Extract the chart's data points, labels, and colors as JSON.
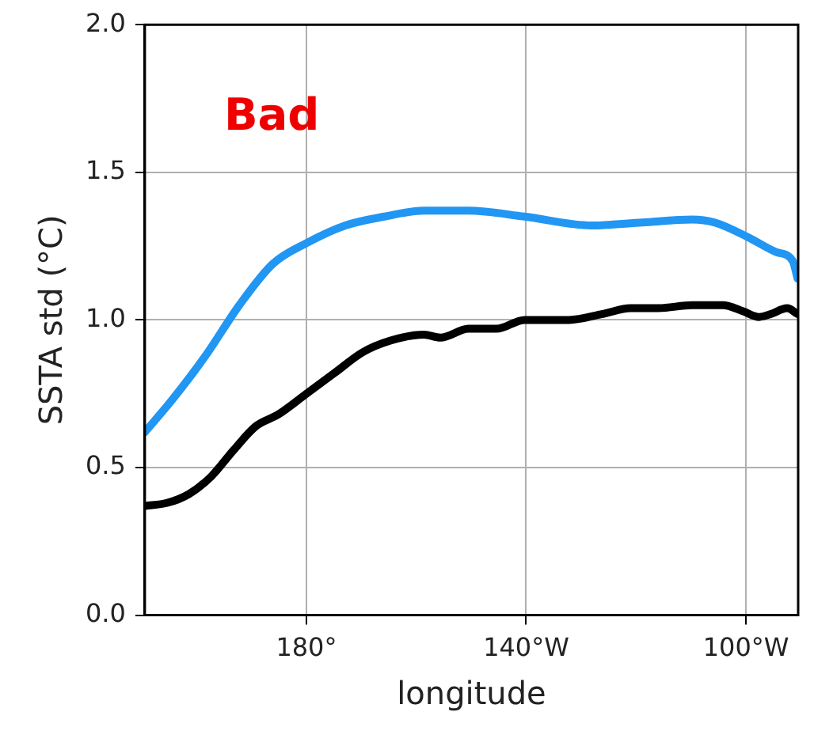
{
  "chart_data": {
    "type": "line",
    "xlabel": "longitude",
    "ylabel": "SSTA std (°C)",
    "annotations": [
      "Bad"
    ],
    "xlim": [
      150.6,
      269.5
    ],
    "xticks": [
      {
        "value": 180,
        "label": "180°"
      },
      {
        "value": 220,
        "label": "140°W"
      },
      {
        "value": 260,
        "label": "100°W"
      }
    ],
    "ylim": [
      0,
      2
    ],
    "yticks": [
      {
        "value": 0,
        "label": "0.0"
      },
      {
        "value": 0.5,
        "label": "0.5"
      },
      {
        "value": 1,
        "label": "1.0"
      },
      {
        "value": 1.5,
        "label": "1.5"
      },
      {
        "value": 2,
        "label": "2.0"
      }
    ],
    "grid": true,
    "marker": "none",
    "line_style": "solid",
    "series": [
      {
        "color": "#2196f3",
        "x": [
          150.6,
          155.6,
          161.7,
          167.8,
          173.9,
          180,
          187.1,
          194.2,
          201.4,
          209.5,
          219.7,
          231.9,
          241.1,
          250.2,
          254.3,
          260.4,
          265.5,
          268.5,
          269.4
        ],
        "values": [
          0.62,
          0.73,
          0.88,
          1.05,
          1.19,
          1.26,
          1.32,
          1.35,
          1.37,
          1.37,
          1.35,
          1.32,
          1.33,
          1.34,
          1.33,
          1.28,
          1.23,
          1.2,
          1.14
        ]
      },
      {
        "color": "#000000",
        "x": [
          150.6,
          154.6,
          158.6,
          162.7,
          166.8,
          170.8,
          174.9,
          180,
          185.1,
          190.2,
          195.3,
          201.4,
          204.4,
          209.5,
          214.6,
          219.7,
          227.8,
          233.9,
          239,
          244.1,
          250.2,
          255.8,
          259.4,
          262.4,
          264.5,
          267.5,
          269.4
        ],
        "values": [
          0.37,
          0.38,
          0.41,
          0.47,
          0.56,
          0.64,
          0.68,
          0.75,
          0.82,
          0.89,
          0.93,
          0.95,
          0.94,
          0.97,
          0.97,
          1.0,
          1.0,
          1.02,
          1.04,
          1.04,
          1.05,
          1.05,
          1.03,
          1.01,
          1.02,
          1.04,
          1.02
        ]
      }
    ]
  }
}
